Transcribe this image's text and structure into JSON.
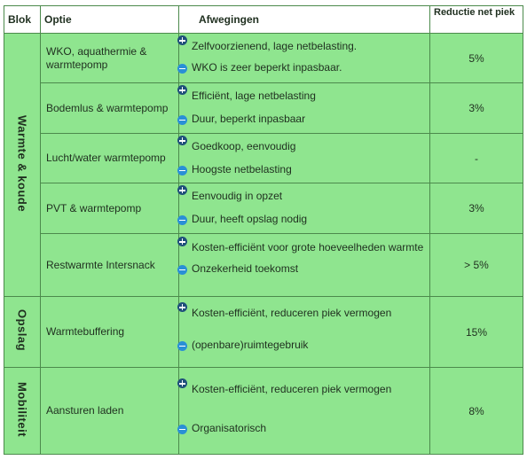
{
  "headers": {
    "blok": "Blok",
    "optie": "Optie",
    "afwegingen": "Afwegingen",
    "reductie": "Reductie net piek"
  },
  "groups": [
    {
      "label": "Warmte & koude"
    },
    {
      "label": "Opslag"
    },
    {
      "label": "Mobiliteit"
    }
  ],
  "rows": [
    {
      "optie": "WKO, aquathermie & warmtepomp",
      "pro": "Zelfvoorzienend, lage netbelasting.",
      "con": "WKO is zeer beperkt inpasbaar.",
      "reductie": "5%"
    },
    {
      "optie": "Bodemlus & warmtepomp",
      "pro": "Efficiënt, lage netbelasting",
      "con": "Duur, beperkt inpasbaar",
      "reductie": "3%"
    },
    {
      "optie": "Lucht/water warmtepomp",
      "pro": "Goedkoop, eenvoudig",
      "con": "Hoogste netbelasting",
      "reductie": "-"
    },
    {
      "optie": "PVT & warmtepomp",
      "pro": "Eenvoudig in opzet",
      "con": "Duur, heeft opslag nodig",
      "reductie": "3%"
    },
    {
      "optie": "Restwarmte Intersnack",
      "pro": "Kosten-efficiënt voor grote hoeveelheden warmte",
      "con": "Onzekerheid toekomst",
      "reductie": "> 5%"
    },
    {
      "optie": "Warmtebuffering",
      "pro": "Kosten-efficiënt, reduceren piek vermogen",
      "con": "(openbare)ruimtegebruik",
      "reductie": "15%"
    },
    {
      "optie": "Aansturen laden",
      "pro": "Kosten-efficiënt, reduceren piek vermogen",
      "con": "Organisatorisch",
      "reductie": "8%"
    }
  ]
}
